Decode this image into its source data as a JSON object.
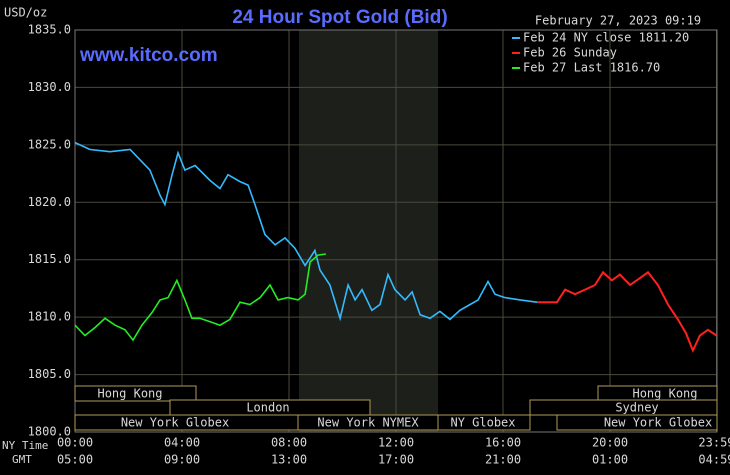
{
  "chart_data": {
    "type": "line",
    "title": "24 Hour Spot Gold (Bid)",
    "timestamp": "February 27, 2023 09:19",
    "watermark": "www.kitco.com",
    "y_label": "USD/oz",
    "x_row_labels": [
      "NY Time",
      "GMT"
    ],
    "xlim": [
      0,
      24
    ],
    "xticks": [
      {
        "value": 0,
        "label": "00:00"
      },
      {
        "value": 4,
        "label": "04:00"
      },
      {
        "value": 8,
        "label": "08:00"
      },
      {
        "value": 12,
        "label": "12:00"
      },
      {
        "value": 16,
        "label": "16:00"
      },
      {
        "value": 20,
        "label": "20:00"
      },
      {
        "value": 23.98,
        "label": "23:59"
      }
    ],
    "gmt_labels": [
      "05:00",
      "09:00",
      "13:00",
      "17:00",
      "21:00",
      "01:00",
      "04:59"
    ],
    "ylim": [
      1800,
      1835
    ],
    "yticks": [
      {
        "value": 1800,
        "label": "1800.0"
      },
      {
        "value": 1805,
        "label": "1805.0"
      },
      {
        "value": 1810,
        "label": "1810.0"
      },
      {
        "value": 1815,
        "label": "1815.0"
      },
      {
        "value": 1820,
        "label": "1820.0"
      },
      {
        "value": 1825,
        "label": "1825.0"
      },
      {
        "value": 1830,
        "label": "1830.0"
      },
      {
        "value": 1835,
        "label": "1835.0"
      }
    ],
    "grid": true,
    "legend_position": "upper right",
    "sessions": [
      "Hong Kong",
      "Hong Kong",
      "London",
      "Sydney",
      "New York Globex",
      "New York NYMEX",
      "NY Globex",
      "New York Globex"
    ],
    "series": [
      {
        "name": "Feb 24 NY close 1811.20",
        "color": "#33bbff",
        "x": [
          0,
          0.56,
          1.31,
          2.06,
          2.43,
          2.8,
          3.18,
          3.36,
          3.63,
          3.85,
          4.11,
          4.49,
          5.05,
          5.42,
          5.72,
          6.17,
          6.47,
          6.73,
          7.1,
          7.48,
          7.85,
          8.22,
          8.6,
          8.97,
          9.16,
          9.53,
          9.91,
          10.21,
          10.47,
          10.73,
          11.1,
          11.4,
          11.7,
          11.96,
          12.34,
          12.6,
          12.9,
          13.27,
          13.64,
          14.02,
          14.39,
          14.77,
          15.07,
          15.44,
          15.7,
          16.07,
          16.64,
          17.27
        ],
        "values": [
          1825.2,
          1824.6,
          1824.4,
          1824.6,
          1823.7,
          1822.8,
          1820.6,
          1819.8,
          1822.4,
          1824.3,
          1822.8,
          1823.2,
          1821.9,
          1821.2,
          1822.4,
          1821.8,
          1821.5,
          1819.8,
          1817.2,
          1816.3,
          1816.9,
          1816.0,
          1814.5,
          1815.8,
          1814.1,
          1812.8,
          1809.9,
          1812.8,
          1811.5,
          1812.4,
          1810.6,
          1811.1,
          1813.7,
          1812.4,
          1811.5,
          1812.2,
          1810.2,
          1809.9,
          1810.5,
          1809.8,
          1810.6,
          1811.1,
          1811.5,
          1813.1,
          1812.0,
          1811.7,
          1811.5,
          1811.3
        ]
      },
      {
        "name": "Feb 26 Sunday",
        "color": "#ff2020",
        "x": [
          17.27,
          18.02,
          18.32,
          18.69,
          19.07,
          19.44,
          19.74,
          20.07,
          20.37,
          20.75,
          21.12,
          21.42,
          21.79,
          22.17,
          22.54,
          22.84,
          23.1,
          23.36,
          23.66,
          23.98
        ],
        "values": [
          1811.3,
          1811.3,
          1812.4,
          1812.0,
          1812.4,
          1812.8,
          1813.9,
          1813.2,
          1813.7,
          1812.8,
          1813.4,
          1813.9,
          1812.8,
          1811.1,
          1809.8,
          1808.6,
          1807.1,
          1808.4,
          1808.9,
          1808.4
        ]
      },
      {
        "name": "Feb 27 Last 1816.70",
        "color": "#22ee22",
        "x": [
          0,
          0.37,
          0.75,
          1.12,
          1.5,
          1.87,
          2.17,
          2.5,
          2.88,
          3.18,
          3.48,
          3.81,
          4.11,
          4.37,
          4.67,
          5.05,
          5.42,
          5.79,
          6.17,
          6.54,
          6.92,
          7.29,
          7.59,
          7.96,
          8.34,
          8.6,
          8.79,
          9.08,
          9.38
        ],
        "values": [
          1809.3,
          1808.4,
          1809.1,
          1809.9,
          1809.3,
          1808.9,
          1808.0,
          1809.3,
          1810.4,
          1811.5,
          1811.7,
          1813.2,
          1811.5,
          1809.9,
          1809.9,
          1809.6,
          1809.3,
          1809.8,
          1811.3,
          1811.1,
          1811.7,
          1812.8,
          1811.5,
          1811.7,
          1811.5,
          1812.0,
          1814.8,
          1815.4,
          1815.5
        ]
      }
    ]
  }
}
